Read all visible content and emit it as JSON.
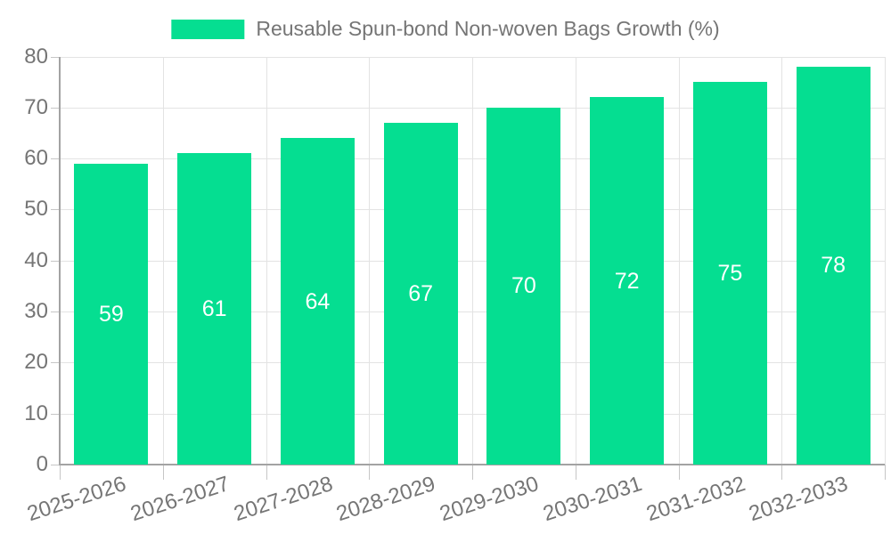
{
  "legend": {
    "label": "Reusable Spun-bond Non-woven Bags Growth (%)"
  },
  "chart_data": {
    "type": "bar",
    "title": "Reusable Spun-bond Non-woven Bags Growth (%)",
    "categories": [
      "2025-2026",
      "2026-2027",
      "2027-2028",
      "2028-2029",
      "2029-2030",
      "2030-2031",
      "2031-2032",
      "2032-2033"
    ],
    "values": [
      59,
      61,
      64,
      67,
      70,
      72,
      75,
      78
    ],
    "series_name": "Reusable Spun-bond Non-woven Bags Growth (%)",
    "xlabel": "",
    "ylabel": "",
    "ylim": [
      0,
      80
    ],
    "ytick_step": 10,
    "yticks": [
      0,
      10,
      20,
      30,
      40,
      50,
      60,
      70,
      80
    ],
    "grid": true,
    "legend_position": "top-center",
    "value_labels": "inside-middle",
    "x_label_rotation_deg": -18
  },
  "colors": {
    "bar": "#05de91",
    "value_label": "#ffffff",
    "axis_text": "#757575",
    "legend_text": "#757575",
    "gridline": "#e3e3e3",
    "tick": "#c6c6c6",
    "axis_line": "#a3a3a3",
    "background": "#ffffff"
  }
}
